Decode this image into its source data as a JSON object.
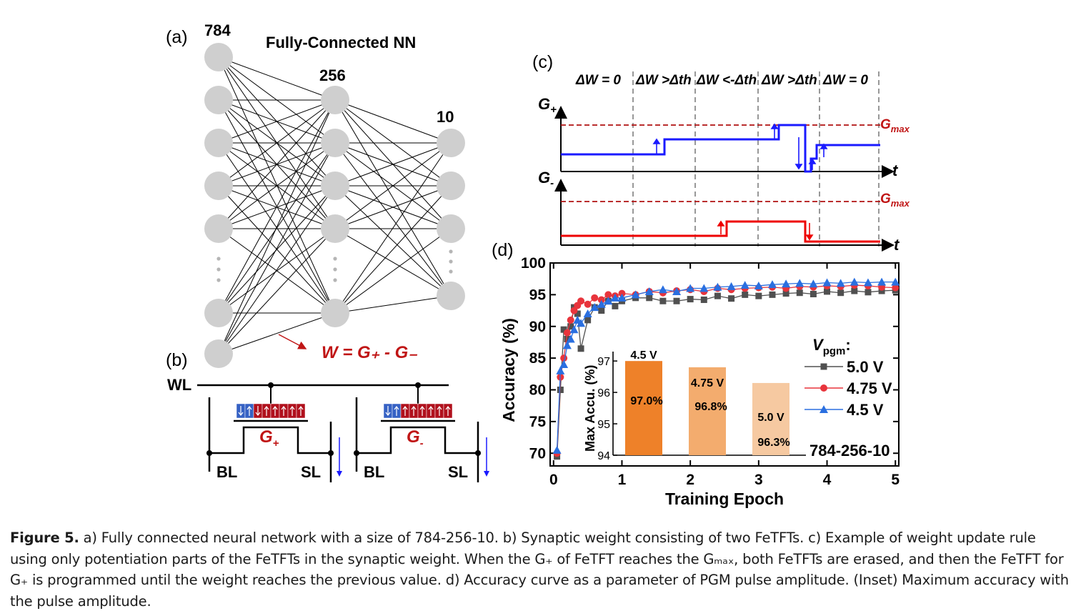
{
  "panel_a": {
    "tag": "(a)",
    "title": "Fully-Connected NN",
    "layers": [
      "784",
      "256",
      "10"
    ],
    "weight_eq": "W = G₊ - G₋"
  },
  "panel_b": {
    "tag": "(b)",
    "wl": "WL",
    "bl": "BL",
    "sl": "SL",
    "g_plus": "G",
    "g_minus": "G"
  },
  "panel_c": {
    "tag": "(c)",
    "phases": [
      "ΔW = 0",
      "ΔW >Δth",
      "ΔW <-Δth",
      "ΔW >Δth",
      "ΔW = 0"
    ],
    "gplus_label": "G",
    "gminus_label": "G",
    "gmax": "Gmax",
    "t": "t"
  },
  "panel_d": {
    "tag": "(d)",
    "legend_title": "V",
    "legend_title_sub": "pgm",
    "network": "784-256-10",
    "inset": {
      "ylabel": "Max Accu. (%)",
      "yticks": [
        "94",
        "95",
        "96",
        "97"
      ],
      "bars": [
        {
          "voltage": "4.5 V",
          "value_label": "97.0%",
          "value": 97.0,
          "color": "#ee8129"
        },
        {
          "voltage": "4.75 V",
          "value_label": "96.8%",
          "value": 96.8,
          "color": "#f3ac6e"
        },
        {
          "voltage": "5.0 V",
          "value_label": "96.3%",
          "value": 96.3,
          "color": "#f6c9a1"
        }
      ]
    }
  },
  "chart_data": {
    "type": "line",
    "xlabel": "Training Epoch",
    "ylabel": "Accuracy (%)",
    "xlim": [
      -0.05,
      5.05
    ],
    "ylim": [
      68,
      100
    ],
    "xticks": [
      0,
      1,
      2,
      3,
      4,
      5
    ],
    "yticks": [
      70,
      75,
      80,
      85,
      90,
      95,
      100
    ],
    "legend": "right",
    "series": [
      {
        "name": "5.0 V",
        "color": "#505050",
        "marker": "square",
        "x": [
          0.05,
          0.1,
          0.15,
          0.2,
          0.25,
          0.3,
          0.35,
          0.4,
          0.5,
          0.6,
          0.7,
          0.8,
          0.9,
          1.0,
          1.2,
          1.4,
          1.6,
          1.8,
          2.0,
          2.2,
          2.4,
          2.6,
          2.8,
          3.0,
          3.2,
          3.4,
          3.6,
          3.8,
          4.0,
          4.2,
          4.4,
          4.6,
          4.8,
          5.0
        ],
        "y": [
          69.5,
          80,
          89.5,
          88,
          90,
          93,
          92,
          86.5,
          91,
          93,
          92.5,
          94,
          93.2,
          94,
          94.5,
          94.5,
          94,
          94,
          94.3,
          94.2,
          94.8,
          94.4,
          95,
          94.8,
          95,
          95.2,
          95.3,
          95.1,
          95.5,
          95.3,
          95.6,
          95.4,
          95.6,
          95.7
        ]
      },
      {
        "name": "4.75 V",
        "color": "#e8343c",
        "marker": "circle",
        "x": [
          0.05,
          0.1,
          0.15,
          0.2,
          0.25,
          0.3,
          0.35,
          0.4,
          0.5,
          0.6,
          0.7,
          0.8,
          0.9,
          1.0,
          1.2,
          1.4,
          1.6,
          1.8,
          2.0,
          2.2,
          2.4,
          2.6,
          2.8,
          3.0,
          3.2,
          3.4,
          3.6,
          3.8,
          4.0,
          4.2,
          4.4,
          4.6,
          4.8,
          5.0
        ],
        "y": [
          70,
          82,
          85,
          89,
          91,
          92.5,
          93.3,
          94,
          93.5,
          94.5,
          94.2,
          95,
          94.8,
          95.2,
          95,
          95.5,
          95.3,
          95.6,
          95.8,
          95.5,
          96,
          95.8,
          96,
          96.1,
          96.2,
          96,
          96.3,
          96.2,
          96.4,
          96.3,
          96.5,
          96.4,
          96.2,
          96.1
        ]
      },
      {
        "name": "4.5 V",
        "color": "#2a6fe0",
        "marker": "triangle",
        "x": [
          0.05,
          0.1,
          0.15,
          0.2,
          0.25,
          0.3,
          0.35,
          0.4,
          0.5,
          0.6,
          0.7,
          0.8,
          0.9,
          1.0,
          1.2,
          1.4,
          1.6,
          1.8,
          2.0,
          2.2,
          2.4,
          2.6,
          2.8,
          3.0,
          3.2,
          3.4,
          3.6,
          3.8,
          4.0,
          4.2,
          4.4,
          4.6,
          4.8,
          5.0
        ],
        "y": [
          70.5,
          83,
          84,
          87,
          88,
          89.5,
          91,
          90.5,
          92,
          93,
          93.5,
          94,
          94.5,
          94.5,
          95,
          95.5,
          95.8,
          95.5,
          96,
          96,
          96.2,
          96.3,
          96.5,
          96.4,
          96.6,
          96.7,
          96.8,
          96.7,
          96.9,
          96.8,
          97,
          96.9,
          97,
          97
        ]
      }
    ]
  },
  "caption": {
    "label": "Figure 5.",
    "text": " a) Fully connected neural network with a size of 784-256-10. b) Synaptic weight consisting of two FeTFTs. c) Example of weight update rule using only potentiation parts of the FeTFTs in the synaptic weight. When the G₊ of FeTFT reaches the Gₘₐₓ, both FeTFTs are erased, and then the FeTFT for G₊ is programmed until the weight reaches the previous value. d) Accuracy curve as a parameter of PGM pulse amplitude. (Inset) Maximum accuracy with the pulse amplitude."
  }
}
